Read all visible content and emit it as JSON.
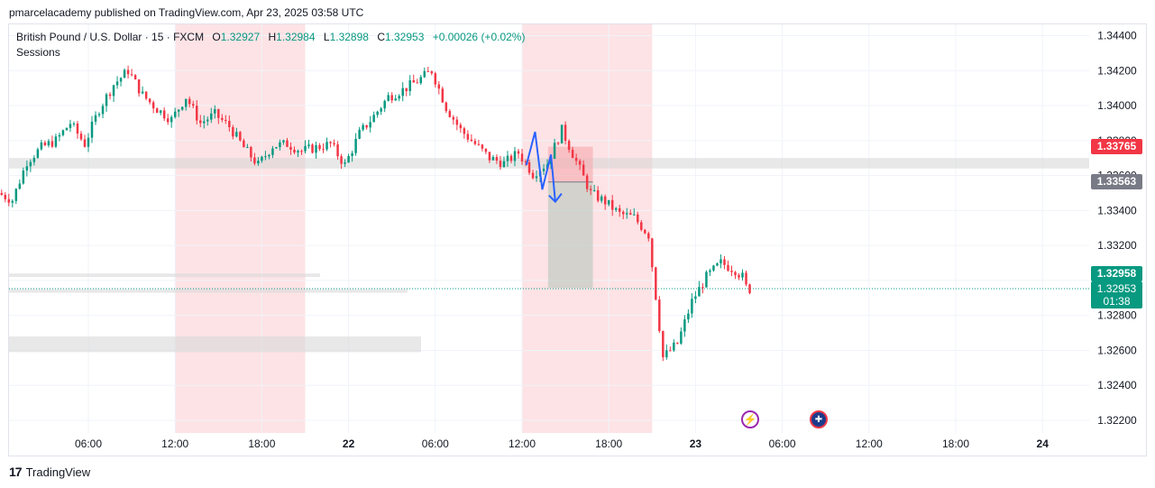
{
  "header": {
    "publisher_line": "pmarcelacademy published on TradingView.com, Apr 23, 2025 03:58 UTC"
  },
  "legend": {
    "symbol": "British Pound / U.S. Dollar · 15 · FXCM",
    "open_label": "O",
    "open": "1.32927",
    "high_label": "H",
    "high": "1.32984",
    "low_label": "L",
    "low": "1.32898",
    "close_label": "C",
    "close": "1.32953",
    "change": "+0.00026 (+0.02%)",
    "indicator": "Sessions"
  },
  "price_tags": {
    "red": "1.33765",
    "gray": "1.33563",
    "green_last": "1.32958",
    "green_current": "1.32953",
    "countdown": "01:38"
  },
  "footer": {
    "logo_mark": "17",
    "brand": "TradingView"
  },
  "colors": {
    "up": "#089981",
    "down": "#f23645",
    "session": "#fde0e2",
    "drawing": "#2962ff"
  },
  "events": [
    "bolt-icon",
    "uk-flag-icon"
  ],
  "chart_data": {
    "type": "candlestick",
    "title": "British Pound / U.S. Dollar · 15 · FXCM",
    "y_ticks": [
      "1.34400",
      "1.34200",
      "1.34000",
      "1.33800",
      "1.33600",
      "1.33400",
      "1.33200",
      "1.33000",
      "1.32800",
      "1.32600",
      "1.32400",
      "1.32200"
    ],
    "y_tick_values": [
      1.344,
      1.342,
      1.34,
      1.338,
      1.336,
      1.334,
      1.332,
      1.33,
      1.328,
      1.326,
      1.324,
      1.322
    ],
    "ylim": [
      1.3213,
      1.3453
    ],
    "x_ticks": [
      "06:00",
      "12:00",
      "18:00",
      "22",
      "06:00",
      "12:00",
      "18:00",
      "23",
      "06:00",
      "12:00",
      "18:00",
      "24"
    ],
    "x_tick_hours": [
      6,
      12,
      18,
      24,
      30,
      36,
      42,
      48,
      54,
      60,
      66,
      72
    ],
    "xlim_hours": [
      0,
      72
    ],
    "sessions_hours": [
      [
        12,
        21
      ],
      [
        36,
        45
      ]
    ],
    "last_price": 1.32953,
    "support_zone": [
      1.3364,
      1.337
    ],
    "position": {
      "start_hour": 37.8,
      "end_hour": 40.9,
      "stop_top": 1.33765,
      "entry": 1.33563,
      "target": 1.32958
    },
    "price_path": [
      [
        0.0,
        1.335
      ],
      [
        1.0,
        1.3346
      ],
      [
        2.0,
        1.3368
      ],
      [
        3.0,
        1.3376
      ],
      [
        4.0,
        1.338
      ],
      [
        5.0,
        1.339
      ],
      [
        6.0,
        1.3378
      ],
      [
        7.0,
        1.3398
      ],
      [
        8.0,
        1.3412
      ],
      [
        9.0,
        1.342
      ],
      [
        10.0,
        1.3406
      ],
      [
        11.0,
        1.3398
      ],
      [
        12.0,
        1.3392
      ],
      [
        13.0,
        1.3405
      ],
      [
        14.0,
        1.339
      ],
      [
        15.0,
        1.3395
      ],
      [
        16.0,
        1.3388
      ],
      [
        17.0,
        1.3376
      ],
      [
        18.0,
        1.3366
      ],
      [
        19.0,
        1.3377
      ],
      [
        20.0,
        1.3378
      ],
      [
        21.0,
        1.3374
      ],
      [
        22.0,
        1.3376
      ],
      [
        23.0,
        1.3378
      ],
      [
        24.0,
        1.3366
      ],
      [
        25.0,
        1.3384
      ],
      [
        26.0,
        1.3394
      ],
      [
        27.0,
        1.3405
      ],
      [
        28.0,
        1.3409
      ],
      [
        29.0,
        1.3414
      ],
      [
        30.0,
        1.342
      ],
      [
        31.0,
        1.3399
      ],
      [
        32.0,
        1.3386
      ],
      [
        33.0,
        1.3378
      ],
      [
        34.0,
        1.337
      ],
      [
        35.0,
        1.3367
      ],
      [
        36.0,
        1.3373
      ],
      [
        37.0,
        1.3361
      ],
      [
        38.0,
        1.3367
      ],
      [
        39.0,
        1.3386
      ],
      [
        40.0,
        1.3368
      ],
      [
        41.0,
        1.335
      ],
      [
        42.0,
        1.3345
      ],
      [
        43.0,
        1.3338
      ],
      [
        44.0,
        1.3336
      ],
      [
        45.0,
        1.3326
      ],
      [
        46.0,
        1.3256
      ],
      [
        47.0,
        1.3264
      ],
      [
        48.0,
        1.3288
      ],
      [
        49.0,
        1.3302
      ],
      [
        50.0,
        1.331
      ],
      [
        51.0,
        1.3306
      ],
      [
        51.5,
        1.3302
      ],
      [
        51.8,
        1.3295
      ]
    ]
  }
}
